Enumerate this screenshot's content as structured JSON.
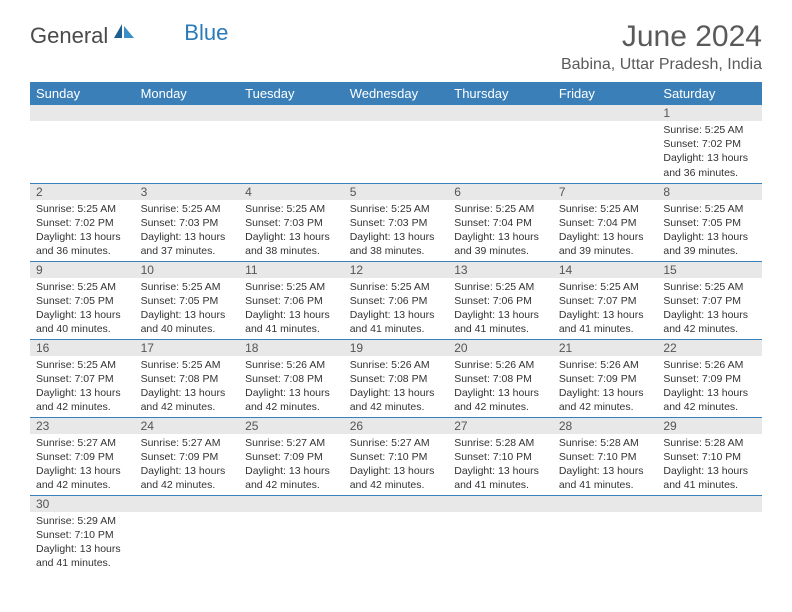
{
  "brand": {
    "part1": "General",
    "part2": "Blue"
  },
  "title": "June 2024",
  "location": "Babina, Uttar Pradesh, India",
  "dayHeaders": [
    "Sunday",
    "Monday",
    "Tuesday",
    "Wednesday",
    "Thursday",
    "Friday",
    "Saturday"
  ],
  "colors": {
    "headerBg": "#3b7fb8",
    "headerText": "#ffffff",
    "dayNumBg": "#e8e8e8",
    "borderColor": "#3b7fb8"
  },
  "weeks": [
    [
      {
        "n": "",
        "sr": "",
        "ss": "",
        "dl": ""
      },
      {
        "n": "",
        "sr": "",
        "ss": "",
        "dl": ""
      },
      {
        "n": "",
        "sr": "",
        "ss": "",
        "dl": ""
      },
      {
        "n": "",
        "sr": "",
        "ss": "",
        "dl": ""
      },
      {
        "n": "",
        "sr": "",
        "ss": "",
        "dl": ""
      },
      {
        "n": "",
        "sr": "",
        "ss": "",
        "dl": ""
      },
      {
        "n": "1",
        "sr": "Sunrise: 5:25 AM",
        "ss": "Sunset: 7:02 PM",
        "dl": "Daylight: 13 hours and 36 minutes."
      }
    ],
    [
      {
        "n": "2",
        "sr": "Sunrise: 5:25 AM",
        "ss": "Sunset: 7:02 PM",
        "dl": "Daylight: 13 hours and 36 minutes."
      },
      {
        "n": "3",
        "sr": "Sunrise: 5:25 AM",
        "ss": "Sunset: 7:03 PM",
        "dl": "Daylight: 13 hours and 37 minutes."
      },
      {
        "n": "4",
        "sr": "Sunrise: 5:25 AM",
        "ss": "Sunset: 7:03 PM",
        "dl": "Daylight: 13 hours and 38 minutes."
      },
      {
        "n": "5",
        "sr": "Sunrise: 5:25 AM",
        "ss": "Sunset: 7:03 PM",
        "dl": "Daylight: 13 hours and 38 minutes."
      },
      {
        "n": "6",
        "sr": "Sunrise: 5:25 AM",
        "ss": "Sunset: 7:04 PM",
        "dl": "Daylight: 13 hours and 39 minutes."
      },
      {
        "n": "7",
        "sr": "Sunrise: 5:25 AM",
        "ss": "Sunset: 7:04 PM",
        "dl": "Daylight: 13 hours and 39 minutes."
      },
      {
        "n": "8",
        "sr": "Sunrise: 5:25 AM",
        "ss": "Sunset: 7:05 PM",
        "dl": "Daylight: 13 hours and 39 minutes."
      }
    ],
    [
      {
        "n": "9",
        "sr": "Sunrise: 5:25 AM",
        "ss": "Sunset: 7:05 PM",
        "dl": "Daylight: 13 hours and 40 minutes."
      },
      {
        "n": "10",
        "sr": "Sunrise: 5:25 AM",
        "ss": "Sunset: 7:05 PM",
        "dl": "Daylight: 13 hours and 40 minutes."
      },
      {
        "n": "11",
        "sr": "Sunrise: 5:25 AM",
        "ss": "Sunset: 7:06 PM",
        "dl": "Daylight: 13 hours and 41 minutes."
      },
      {
        "n": "12",
        "sr": "Sunrise: 5:25 AM",
        "ss": "Sunset: 7:06 PM",
        "dl": "Daylight: 13 hours and 41 minutes."
      },
      {
        "n": "13",
        "sr": "Sunrise: 5:25 AM",
        "ss": "Sunset: 7:06 PM",
        "dl": "Daylight: 13 hours and 41 minutes."
      },
      {
        "n": "14",
        "sr": "Sunrise: 5:25 AM",
        "ss": "Sunset: 7:07 PM",
        "dl": "Daylight: 13 hours and 41 minutes."
      },
      {
        "n": "15",
        "sr": "Sunrise: 5:25 AM",
        "ss": "Sunset: 7:07 PM",
        "dl": "Daylight: 13 hours and 42 minutes."
      }
    ],
    [
      {
        "n": "16",
        "sr": "Sunrise: 5:25 AM",
        "ss": "Sunset: 7:07 PM",
        "dl": "Daylight: 13 hours and 42 minutes."
      },
      {
        "n": "17",
        "sr": "Sunrise: 5:25 AM",
        "ss": "Sunset: 7:08 PM",
        "dl": "Daylight: 13 hours and 42 minutes."
      },
      {
        "n": "18",
        "sr": "Sunrise: 5:26 AM",
        "ss": "Sunset: 7:08 PM",
        "dl": "Daylight: 13 hours and 42 minutes."
      },
      {
        "n": "19",
        "sr": "Sunrise: 5:26 AM",
        "ss": "Sunset: 7:08 PM",
        "dl": "Daylight: 13 hours and 42 minutes."
      },
      {
        "n": "20",
        "sr": "Sunrise: 5:26 AM",
        "ss": "Sunset: 7:08 PM",
        "dl": "Daylight: 13 hours and 42 minutes."
      },
      {
        "n": "21",
        "sr": "Sunrise: 5:26 AM",
        "ss": "Sunset: 7:09 PM",
        "dl": "Daylight: 13 hours and 42 minutes."
      },
      {
        "n": "22",
        "sr": "Sunrise: 5:26 AM",
        "ss": "Sunset: 7:09 PM",
        "dl": "Daylight: 13 hours and 42 minutes."
      }
    ],
    [
      {
        "n": "23",
        "sr": "Sunrise: 5:27 AM",
        "ss": "Sunset: 7:09 PM",
        "dl": "Daylight: 13 hours and 42 minutes."
      },
      {
        "n": "24",
        "sr": "Sunrise: 5:27 AM",
        "ss": "Sunset: 7:09 PM",
        "dl": "Daylight: 13 hours and 42 minutes."
      },
      {
        "n": "25",
        "sr": "Sunrise: 5:27 AM",
        "ss": "Sunset: 7:09 PM",
        "dl": "Daylight: 13 hours and 42 minutes."
      },
      {
        "n": "26",
        "sr": "Sunrise: 5:27 AM",
        "ss": "Sunset: 7:10 PM",
        "dl": "Daylight: 13 hours and 42 minutes."
      },
      {
        "n": "27",
        "sr": "Sunrise: 5:28 AM",
        "ss": "Sunset: 7:10 PM",
        "dl": "Daylight: 13 hours and 41 minutes."
      },
      {
        "n": "28",
        "sr": "Sunrise: 5:28 AM",
        "ss": "Sunset: 7:10 PM",
        "dl": "Daylight: 13 hours and 41 minutes."
      },
      {
        "n": "29",
        "sr": "Sunrise: 5:28 AM",
        "ss": "Sunset: 7:10 PM",
        "dl": "Daylight: 13 hours and 41 minutes."
      }
    ],
    [
      {
        "n": "30",
        "sr": "Sunrise: 5:29 AM",
        "ss": "Sunset: 7:10 PM",
        "dl": "Daylight: 13 hours and 41 minutes."
      },
      {
        "n": "",
        "sr": "",
        "ss": "",
        "dl": ""
      },
      {
        "n": "",
        "sr": "",
        "ss": "",
        "dl": ""
      },
      {
        "n": "",
        "sr": "",
        "ss": "",
        "dl": ""
      },
      {
        "n": "",
        "sr": "",
        "ss": "",
        "dl": ""
      },
      {
        "n": "",
        "sr": "",
        "ss": "",
        "dl": ""
      },
      {
        "n": "",
        "sr": "",
        "ss": "",
        "dl": ""
      }
    ]
  ]
}
